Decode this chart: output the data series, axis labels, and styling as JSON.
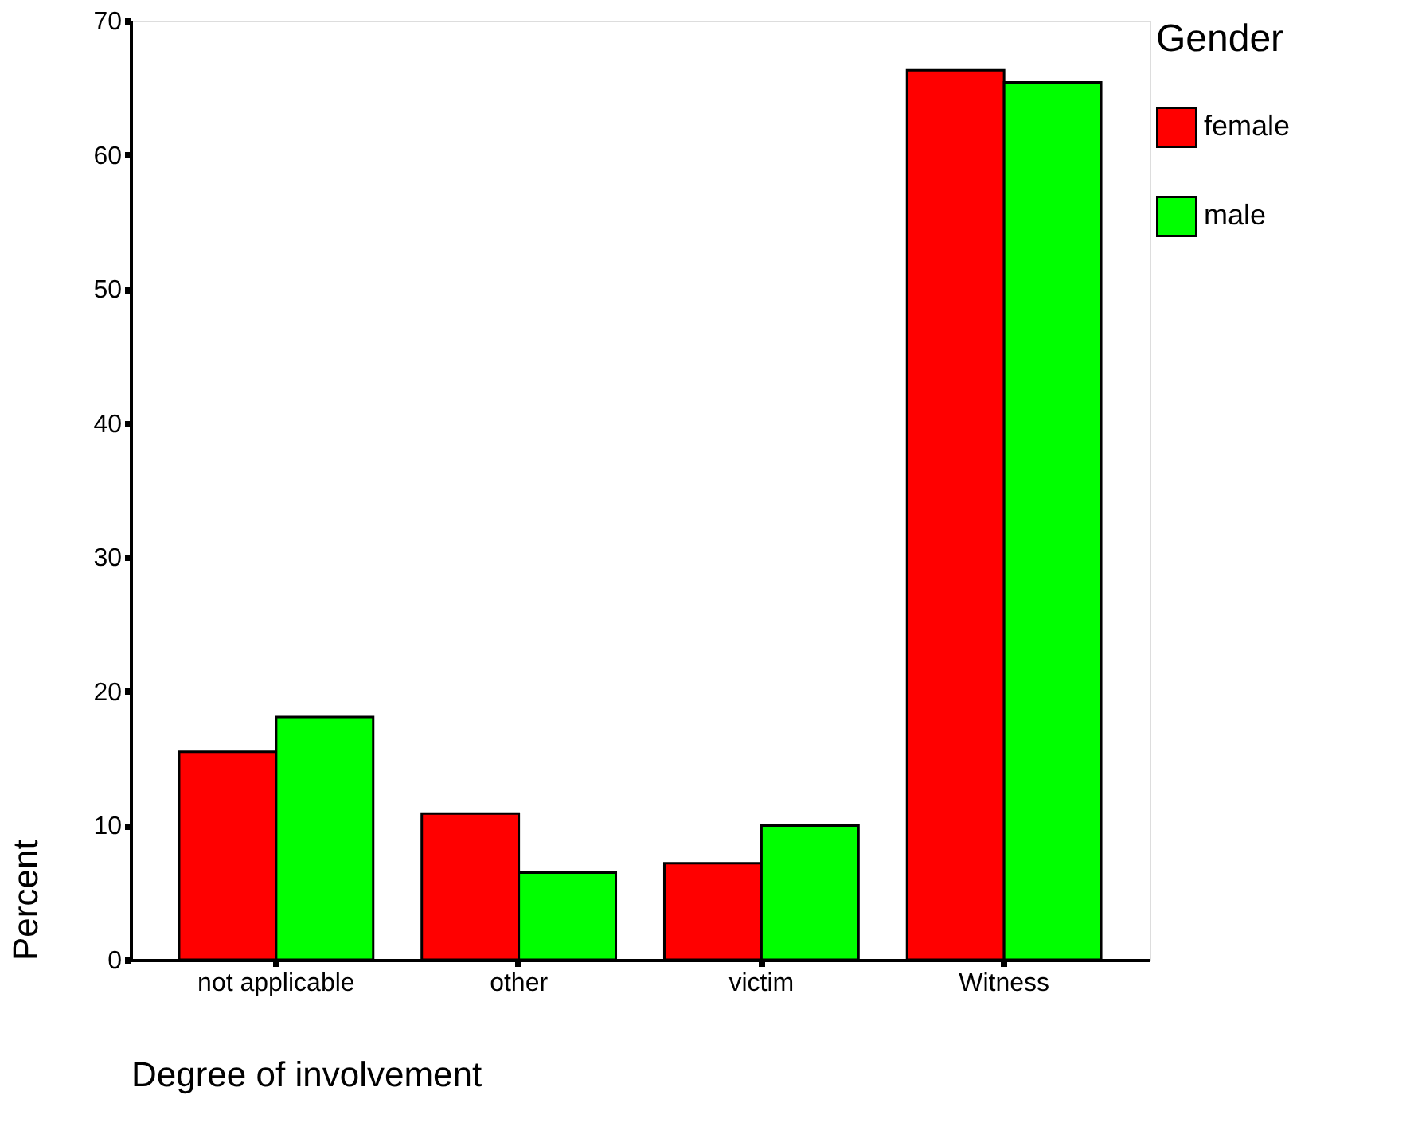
{
  "chart_data": {
    "type": "bar",
    "xlabel": "Degree of involvement",
    "ylabel": "Percent",
    "legend_title": "Gender",
    "categories": [
      "not applicable",
      "other",
      "victim",
      "Witness"
    ],
    "series": [
      {
        "name": "female",
        "color": "#ff0000",
        "values": [
          15.5,
          10.9,
          7.2,
          66.3
        ]
      },
      {
        "name": "male",
        "color": "#00ff00",
        "values": [
          18.1,
          6.5,
          10.0,
          65.4
        ]
      }
    ],
    "ylim": [
      0,
      70
    ],
    "yticks": [
      0,
      10,
      20,
      30,
      40,
      50,
      60,
      70
    ],
    "grid": false,
    "legend": "right"
  }
}
